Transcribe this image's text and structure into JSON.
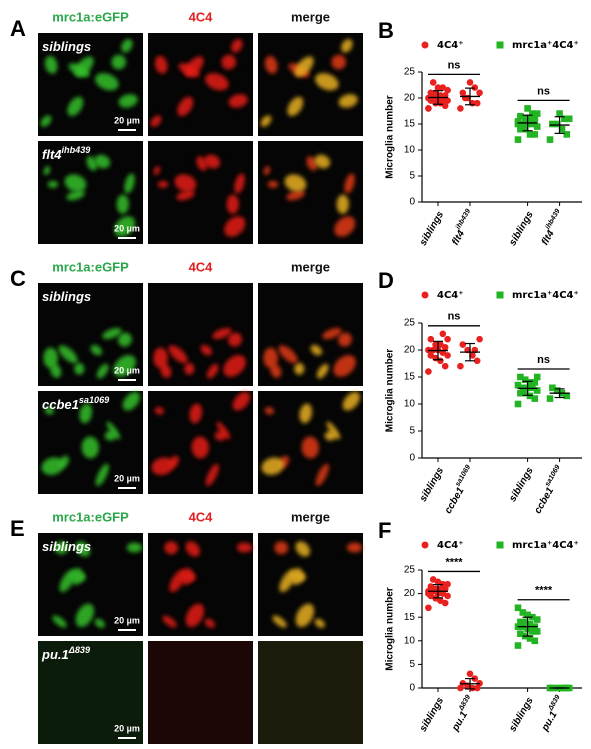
{
  "panels": [
    {
      "letter": "A",
      "headers": [
        "mrc1a:eGFP",
        "4C4",
        "merge"
      ],
      "rows": [
        {
          "label": {
            "text": "siblings"
          },
          "scale": "20 µm"
        },
        {
          "label": {
            "text": "flt4",
            "sup": "ihb439"
          },
          "scale": "20 µm"
        }
      ]
    },
    {
      "letter": "C",
      "headers": [
        "mrc1a:eGFP",
        "4C4",
        "merge"
      ],
      "rows": [
        {
          "label": {
            "text": "siblings"
          },
          "scale": "20 µm"
        },
        {
          "label": {
            "text": "ccbe1",
            "sup": "sa1069"
          },
          "scale": "20 µm"
        }
      ]
    },
    {
      "letter": "E",
      "headers": [
        "mrc1a:eGFP",
        "4C4",
        "merge"
      ],
      "rows": [
        {
          "label": {
            "text": "siblings"
          },
          "scale": "20 µm"
        },
        {
          "label": {
            "text": "pu.1",
            "sup": "Δ839"
          },
          "scale": "20 µm"
        }
      ]
    }
  ],
  "chart_data": [
    {
      "type": "strip",
      "panel_label": "B",
      "y_label": "Microglia number",
      "categories": [
        {
          "text": "siblings"
        },
        {
          "text": "flt4",
          "sup": "ihb439"
        },
        {
          "text": "siblings"
        },
        {
          "text": "flt4",
          "sup": "ihb439"
        }
      ],
      "ylim": [
        0,
        25
      ],
      "yticks": [
        0,
        5,
        10,
        15,
        20,
        25
      ],
      "annotations": [
        "ns",
        "ns"
      ],
      "series": [
        {
          "name": "4C4⁺",
          "color": "#e8201e",
          "marker": "circle",
          "values": [
            [
              18,
              18.5,
              19,
              19,
              19.5,
              19.5,
              20,
              20,
              20,
              20,
              20.5,
              20.5,
              21,
              21,
              21.5,
              22,
              22,
              23,
              18,
              19.5
            ],
            [
              18,
              19,
              19,
              20,
              21,
              21,
              22,
              23,
              20
            ],
            null,
            null
          ],
          "means": [
            20.1,
            20.3,
            null,
            null
          ],
          "sds": [
            1.3,
            1.6,
            null,
            null
          ]
        },
        {
          "name": "mrc1a⁺4C4⁺",
          "color": "#22b422",
          "marker": "square",
          "values": [
            null,
            null,
            [
              12,
              13,
              13,
              14,
              14,
              14.5,
              15,
              15,
              15,
              15.5,
              16,
              16,
              16,
              16.5,
              17,
              17,
              18,
              14,
              15,
              16
            ],
            [
              12,
              13,
              14,
              15,
              15,
              16,
              16,
              17
            ]
          ],
          "means": [
            null,
            null,
            15.2,
            14.8
          ],
          "sds": [
            null,
            null,
            1.5,
            1.6
          ]
        }
      ]
    },
    {
      "type": "strip",
      "panel_label": "D",
      "y_label": "Microglia number",
      "categories": [
        {
          "text": "siblings"
        },
        {
          "text": "ccbe1",
          "sup": "sa1069"
        },
        {
          "text": "siblings"
        },
        {
          "text": "ccbe1",
          "sup": "sa1069"
        }
      ],
      "ylim": [
        0,
        25
      ],
      "yticks": [
        0,
        5,
        10,
        15,
        20,
        25
      ],
      "annotations": [
        "ns",
        "ns"
      ],
      "series": [
        {
          "name": "4C4⁺",
          "color": "#e8201e",
          "marker": "circle",
          "values": [
            [
              16,
              17,
              18,
              18.5,
              19,
              19,
              19.5,
              20,
              20,
              20,
              20.5,
              21,
              21,
              22,
              22,
              23
            ],
            [
              17,
              18,
              19,
              20,
              21,
              22,
              20
            ],
            null,
            null
          ],
          "means": [
            19.9,
            19.6,
            null,
            null
          ],
          "sds": [
            1.7,
            1.6,
            null,
            null
          ]
        },
        {
          "name": "mrc1a⁺4C4⁺",
          "color": "#22b422",
          "marker": "square",
          "values": [
            null,
            null,
            [
              10,
              11,
              11.5,
              12,
              12,
              12.5,
              13,
              13,
              13,
              13.5,
              14,
              14,
              14.5,
              15,
              15
            ],
            [
              11,
              11.5,
              12,
              12.5,
              13
            ]
          ],
          "means": [
            null,
            null,
            12.9,
            12
          ],
          "sds": [
            null,
            null,
            1.3,
            0.8
          ]
        }
      ]
    },
    {
      "type": "strip",
      "panel_label": "F",
      "y_label": "Microglia number",
      "categories": [
        {
          "text": "siblings"
        },
        {
          "text": "pu.1",
          "sup": "Δ839"
        },
        {
          "text": "siblings"
        },
        {
          "text": "pu.1",
          "sup": "Δ839"
        }
      ],
      "ylim": [
        0,
        25
      ],
      "yticks": [
        0,
        5,
        10,
        15,
        20,
        25
      ],
      "annotations": [
        "****",
        "****"
      ],
      "series": [
        {
          "name": "4C4⁺",
          "color": "#e8201e",
          "marker": "circle",
          "values": [
            [
              17,
              18,
              18.5,
              19,
              19.5,
              19.5,
              20,
              20,
              20.5,
              20.5,
              21,
              21,
              21,
              21.5,
              22,
              22,
              22.5,
              23,
              20,
              21
            ],
            [
              0,
              0,
              0,
              0.5,
              1,
              1,
              2,
              3
            ],
            null,
            null
          ],
          "means": [
            20.5,
            0.9,
            null,
            null
          ],
          "sds": [
            1.4,
            1.1,
            null,
            null
          ]
        },
        {
          "name": "mrc1a⁺4C4⁺",
          "color": "#22b422",
          "marker": "square",
          "values": [
            null,
            null,
            [
              9,
              10,
              10.5,
              11,
              11.5,
              12,
              12,
              12.5,
              13,
              13,
              13,
              13.5,
              14,
              14,
              14.5,
              15,
              15.5,
              16,
              17,
              12
            ],
            [
              0,
              0,
              0,
              0,
              0,
              0,
              0
            ]
          ],
          "means": [
            null,
            null,
            13,
            0
          ],
          "sds": [
            null,
            null,
            2,
            0
          ]
        }
      ]
    }
  ]
}
